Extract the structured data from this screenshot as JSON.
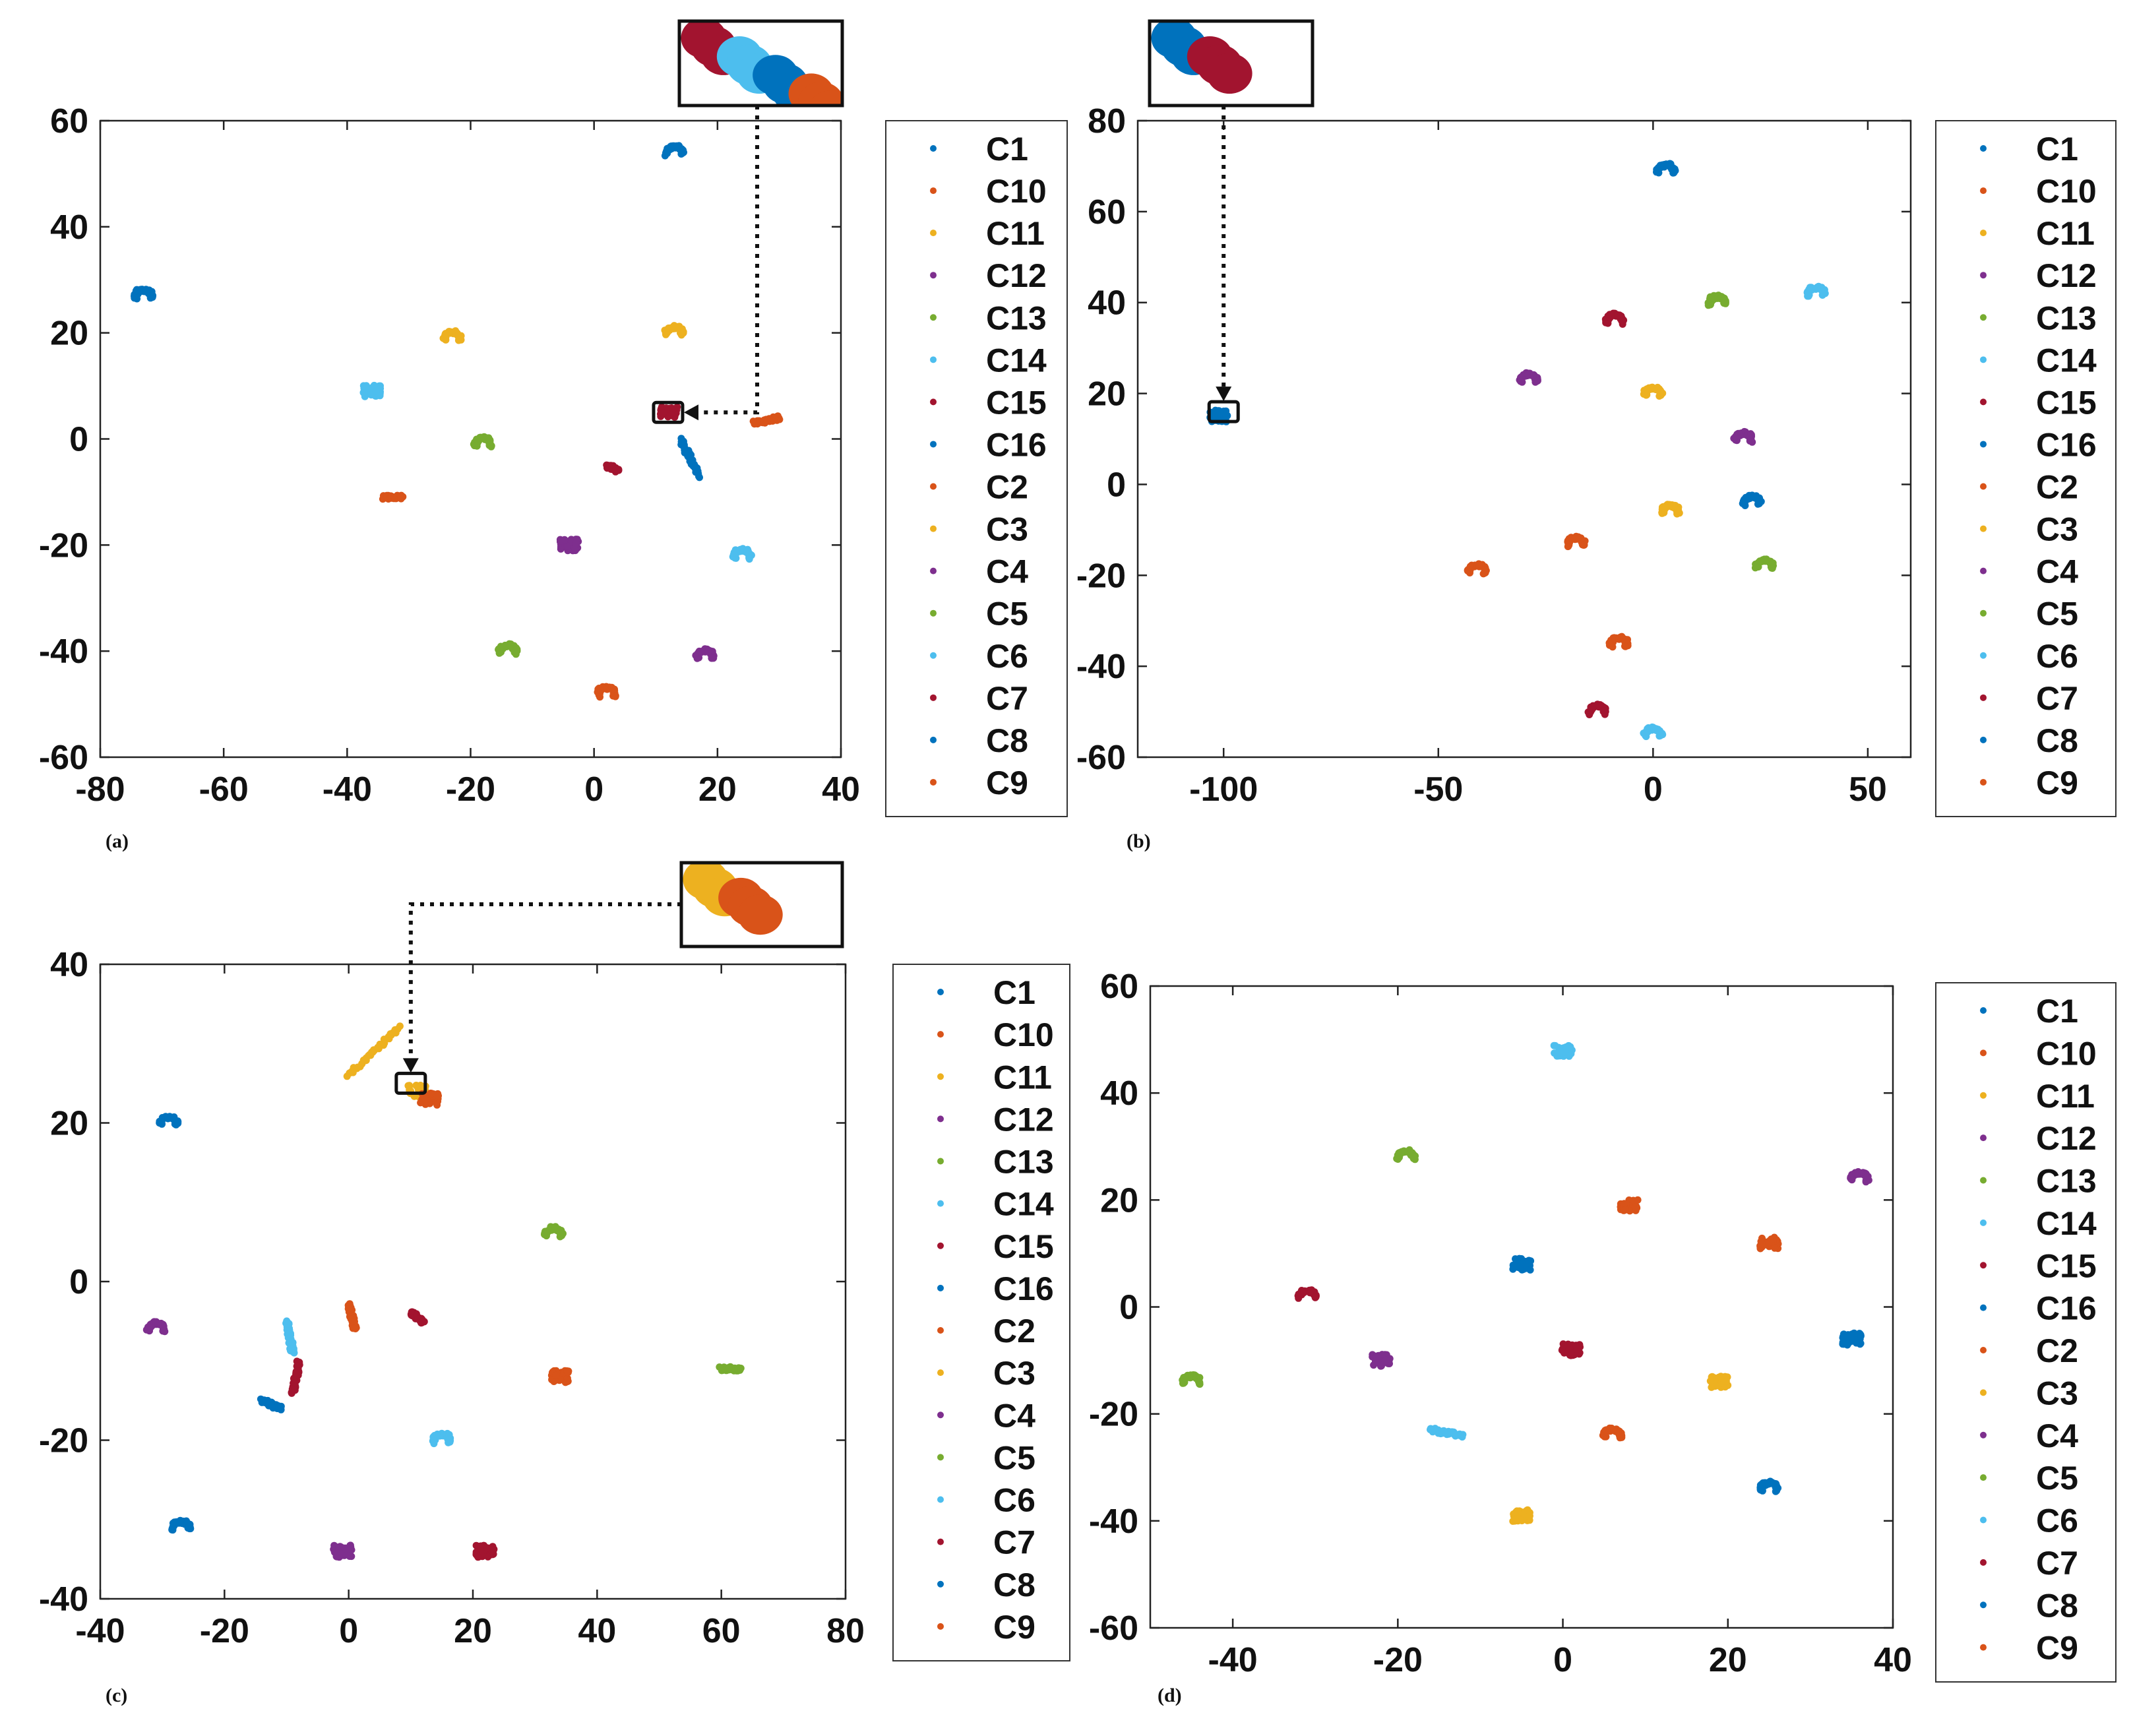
{
  "colors": {
    "C1": "#0072BD",
    "C10": "#D95319",
    "C11": "#EDB120",
    "C12": "#7E2F8E",
    "C13": "#77AC30",
    "C14": "#4DBEEE",
    "C15": "#A2142F",
    "C16": "#0072BD",
    "C2": "#D95319",
    "C3": "#EDB120",
    "C4": "#7E2F8E",
    "C5": "#77AC30",
    "C6": "#4DBEEE",
    "C7": "#A2142F",
    "C8": "#0072BD",
    "C9": "#D95319"
  },
  "chart_data": [
    {
      "type": "scatter",
      "panel_label": "(a)",
      "title": "",
      "xlabel": "",
      "ylabel": "",
      "xlim": [
        -80,
        40
      ],
      "ylim": [
        -60,
        60
      ],
      "xticks": [
        -80,
        -60,
        -40,
        -20,
        0,
        20,
        40
      ],
      "yticks": [
        -60,
        -40,
        -20,
        0,
        20,
        40,
        60
      ],
      "legend": [
        "C1",
        "C10",
        "C11",
        "C12",
        "C13",
        "C14",
        "C15",
        "C16",
        "C2",
        "C3",
        "C4",
        "C5",
        "C6",
        "C7",
        "C8",
        "C9"
      ],
      "legend_position": "right, outside",
      "zoom_inset": {
        "at": [
          12,
          5
        ],
        "colors": [
          "#A2142F",
          "#4DBEEE",
          "#0072BD",
          "#D95319"
        ]
      },
      "clusters": [
        {
          "class": "C1",
          "x": 13,
          "y": 54,
          "shape": "arc"
        },
        {
          "class": "C8",
          "x": -73,
          "y": 27,
          "shape": "arc"
        },
        {
          "class": "C3",
          "x": -23,
          "y": 19,
          "shape": "arc"
        },
        {
          "class": "C11",
          "x": 13,
          "y": 20,
          "shape": "arc"
        },
        {
          "class": "C6",
          "x": -36,
          "y": 9,
          "shape": "blob"
        },
        {
          "class": "C16",
          "x": 14,
          "y": 0,
          "shape": "line",
          "x2": 17,
          "y2": -7
        },
        {
          "class": "C15",
          "x": 12,
          "y": 5,
          "shape": "blob"
        },
        {
          "class": "C9",
          "x": 30,
          "y": 4,
          "shape": "line",
          "x2": 26,
          "y2": 3
        },
        {
          "class": "C5",
          "x": -18,
          "y": -1,
          "shape": "arc"
        },
        {
          "class": "C7",
          "x": 2,
          "y": -5,
          "shape": "line",
          "x2": 4,
          "y2": -6
        },
        {
          "class": "C10",
          "x": -34,
          "y": -11,
          "shape": "line",
          "x2": -31,
          "y2": -11
        },
        {
          "class": "C12",
          "x": -4,
          "y": -20,
          "shape": "blob"
        },
        {
          "class": "C14",
          "x": 24,
          "y": -22,
          "shape": "arc"
        },
        {
          "class": "C13",
          "x": -14,
          "y": -40,
          "shape": "arc"
        },
        {
          "class": "C4",
          "x": 18,
          "y": -41,
          "shape": "arc"
        },
        {
          "class": "C2",
          "x": 2,
          "y": -48,
          "shape": "arc"
        }
      ]
    },
    {
      "type": "scatter",
      "panel_label": "(b)",
      "title": "",
      "xlabel": "",
      "ylabel": "",
      "xlim": [
        -120,
        60
      ],
      "ylim": [
        -60,
        80
      ],
      "xticks": [
        -100,
        -50,
        0,
        50
      ],
      "yticks": [
        -60,
        -40,
        -20,
        0,
        20,
        40,
        60,
        80
      ],
      "legend": [
        "C1",
        "C10",
        "C11",
        "C12",
        "C13",
        "C14",
        "C15",
        "C16",
        "C2",
        "C3",
        "C4",
        "C5",
        "C6",
        "C7",
        "C8",
        "C9"
      ],
      "legend_position": "right, outside",
      "zoom_inset": {
        "at": [
          -100,
          16
        ],
        "colors": [
          "#0072BD",
          "#A2142F"
        ]
      },
      "clusters": [
        {
          "class": "C1",
          "x": 3,
          "y": 69,
          "shape": "arc"
        },
        {
          "class": "C13",
          "x": 15,
          "y": 40,
          "shape": "arc"
        },
        {
          "class": "C14",
          "x": 38,
          "y": 42,
          "shape": "arc"
        },
        {
          "class": "C15",
          "x": -9,
          "y": 36,
          "shape": "arc"
        },
        {
          "class": "C12",
          "x": -29,
          "y": 23,
          "shape": "arc"
        },
        {
          "class": "C3",
          "x": 0,
          "y": 20,
          "shape": "arc"
        },
        {
          "class": "C16",
          "x": -101,
          "y": 15,
          "shape": "blob"
        },
        {
          "class": "C4",
          "x": 21,
          "y": 10,
          "shape": "arc"
        },
        {
          "class": "C8",
          "x": 23,
          "y": -4,
          "shape": "arc"
        },
        {
          "class": "C11",
          "x": 4,
          "y": -6,
          "shape": "arc"
        },
        {
          "class": "C9",
          "x": -18,
          "y": -13,
          "shape": "arc"
        },
        {
          "class": "C5",
          "x": 26,
          "y": -18,
          "shape": "arc"
        },
        {
          "class": "C2",
          "x": -41,
          "y": -19,
          "shape": "arc"
        },
        {
          "class": "C10",
          "x": -8,
          "y": -35,
          "shape": "arc"
        },
        {
          "class": "C7",
          "x": -13,
          "y": -50,
          "shape": "arc"
        },
        {
          "class": "C6",
          "x": 0,
          "y": -55,
          "shape": "arc"
        }
      ]
    },
    {
      "type": "scatter",
      "panel_label": "(c)",
      "title": "",
      "xlabel": "",
      "ylabel": "",
      "xlim": [
        -40,
        80
      ],
      "ylim": [
        -40,
        40
      ],
      "xticks": [
        -40,
        -20,
        0,
        20,
        40,
        60,
        80
      ],
      "yticks": [
        -40,
        -20,
        0,
        20,
        40
      ],
      "legend": [
        "C1",
        "C10",
        "C11",
        "C12",
        "C13",
        "C14",
        "C15",
        "C16",
        "C2",
        "C3",
        "C4",
        "C5",
        "C6",
        "C7",
        "C8",
        "C9"
      ],
      "legend_position": "right, outside",
      "zoom_inset": {
        "at": [
          10,
          25
        ],
        "colors": [
          "#EDB120",
          "#D95319"
        ]
      },
      "clusters": [
        {
          "class": "C11",
          "x": 0,
          "y": 26,
          "shape": "line",
          "x2": 8,
          "y2": 32
        },
        {
          "class": "C3",
          "x": 11,
          "y": 24,
          "shape": "blob"
        },
        {
          "class": "C2",
          "x": 13,
          "y": 23,
          "shape": "blob"
        },
        {
          "class": "C1",
          "x": -29,
          "y": 20,
          "shape": "arc"
        },
        {
          "class": "C13",
          "x": 33,
          "y": 6,
          "shape": "arc"
        },
        {
          "class": "C4",
          "x": -31,
          "y": -6,
          "shape": "arc"
        },
        {
          "class": "C9",
          "x": 0,
          "y": -3,
          "shape": "line",
          "x2": 1,
          "y2": -6
        },
        {
          "class": "C15",
          "x": 10,
          "y": -4,
          "shape": "line",
          "x2": 12,
          "y2": -5
        },
        {
          "class": "C10",
          "x": 34,
          "y": -12,
          "shape": "blob"
        },
        {
          "class": "C5",
          "x": 63,
          "y": -11,
          "shape": "line",
          "x2": 60,
          "y2": -11
        },
        {
          "class": "C6",
          "x": -9,
          "y": -9,
          "shape": "line",
          "x2": -10,
          "y2": -5
        },
        {
          "class": "C7",
          "x": -8,
          "y": -10,
          "shape": "line",
          "x2": -9,
          "y2": -14
        },
        {
          "class": "C16",
          "x": -11,
          "y": -16,
          "shape": "line",
          "x2": -14,
          "y2": -15
        },
        {
          "class": "C14",
          "x": 15,
          "y": -20,
          "shape": "arc"
        },
        {
          "class": "C8",
          "x": -27,
          "y": -31,
          "shape": "arc"
        },
        {
          "class": "C12",
          "x": -1,
          "y": -34,
          "shape": "blob"
        },
        {
          "class": "C15",
          "x": 22,
          "y": -34,
          "shape": "blob"
        }
      ]
    },
    {
      "type": "scatter",
      "panel_label": "(d)",
      "title": "",
      "xlabel": "",
      "ylabel": "",
      "xlim": [
        -50,
        40
      ],
      "ylim": [
        -60,
        60
      ],
      "xticks": [
        -40,
        -20,
        0,
        20,
        40
      ],
      "yticks": [
        -60,
        -40,
        -20,
        0,
        20,
        40,
        60
      ],
      "legend": [
        "C1",
        "C10",
        "C11",
        "C12",
        "C13",
        "C14",
        "C15",
        "C16",
        "C2",
        "C3",
        "C4",
        "C5",
        "C6",
        "C7",
        "C8",
        "C9"
      ],
      "legend_position": "right, outside",
      "clusters": [
        {
          "class": "C6",
          "x": 0,
          "y": 48,
          "shape": "blob"
        },
        {
          "class": "C13",
          "x": -19,
          "y": 28,
          "shape": "arc"
        },
        {
          "class": "C4",
          "x": 36,
          "y": 24,
          "shape": "arc"
        },
        {
          "class": "C10",
          "x": 8,
          "y": 19,
          "shape": "blob"
        },
        {
          "class": "C9",
          "x": 25,
          "y": 12,
          "shape": "blob"
        },
        {
          "class": "C1",
          "x": -5,
          "y": 8,
          "shape": "blob"
        },
        {
          "class": "C7",
          "x": -31,
          "y": 2,
          "shape": "arc"
        },
        {
          "class": "C16",
          "x": 35,
          "y": -6,
          "shape": "blob"
        },
        {
          "class": "C15",
          "x": 1,
          "y": -8,
          "shape": "blob"
        },
        {
          "class": "C12",
          "x": -22,
          "y": -10,
          "shape": "blob"
        },
        {
          "class": "C3",
          "x": 19,
          "y": -14,
          "shape": "blob"
        },
        {
          "class": "C5",
          "x": -45,
          "y": -14,
          "shape": "arc"
        },
        {
          "class": "C14",
          "x": -12,
          "y": -24,
          "shape": "line",
          "x2": -16,
          "y2": -23
        },
        {
          "class": "C2",
          "x": 6,
          "y": -24,
          "shape": "arc"
        },
        {
          "class": "C8",
          "x": 25,
          "y": -34,
          "shape": "arc"
        },
        {
          "class": "C11",
          "x": -5,
          "y": -39,
          "shape": "blob"
        }
      ]
    }
  ]
}
